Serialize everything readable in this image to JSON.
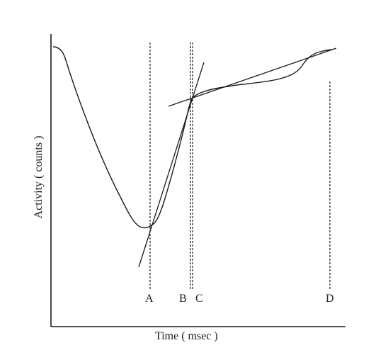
{
  "figure": {
    "x_axis_title": "Time ( msec )",
    "y_axis_title": "Activity ( counts )",
    "markers": [
      {
        "id": "a",
        "label": "A"
      },
      {
        "id": "b",
        "label": "B"
      },
      {
        "id": "c",
        "label": "C"
      },
      {
        "id": "d",
        "label": "D"
      }
    ],
    "colors": {
      "ink": "#1a1a1a",
      "background": "#ffffff"
    }
  }
}
